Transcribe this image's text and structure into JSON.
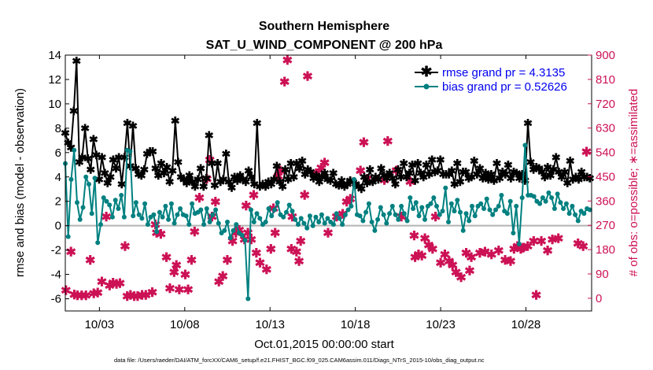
{
  "chart_data": {
    "type": "line",
    "title_line1": "Southern Hemisphere",
    "title_line2": "SAT_U_WIND_COMPONENT @ 200 hPa",
    "xlabel": "Oct.01,2015 00:00:00 start",
    "ylabel_left": "rmse and bias (model - observation)",
    "ylabel_right": "# of obs: o=possible; ∗=assimilated",
    "ylim_left": [
      -7,
      14
    ],
    "ylim_right": [
      -47,
      900
    ],
    "xlim": [
      1.0,
      31.85
    ],
    "x_ticks": [
      {
        "x": 3,
        "label": "10/03"
      },
      {
        "x": 8,
        "label": "10/08"
      },
      {
        "x": 13,
        "label": "10/13"
      },
      {
        "x": 18,
        "label": "10/18"
      },
      {
        "x": 23,
        "label": "10/23"
      },
      {
        "x": 28,
        "label": "10/28"
      }
    ],
    "y_ticks_left": [
      "-6",
      "-4",
      "-2",
      "0",
      "2",
      "4",
      "6",
      "8",
      "10",
      "12",
      "14"
    ],
    "y_ticks_right": [
      "0",
      "90",
      "180",
      "270",
      "360",
      "450",
      "540",
      "630",
      "720",
      "810",
      "900"
    ],
    "colors": {
      "rmse": "#000000",
      "bias": "#008080",
      "obs": "#cc1155",
      "zero_line": "#b3b3b3"
    },
    "legend": [
      "rmse grand pr = 4.3135",
      "bias grand pr = 0.52626"
    ],
    "footnote": "data file: /Users/raeder/DAI/ATM_forcXX/CAM6_setup/f.e21.FHIST_BGC.f09_025.CAM6assim.011/Diags_NTrS_2015-10/obs_diag_output.nc",
    "series": [
      {
        "name": "rmse",
        "values": [
          7.6,
          6.8,
          6.4,
          9.4,
          13.5,
          5.2,
          5.6,
          8.0,
          5.5,
          4.6,
          7.1,
          5.8,
          3.8,
          5.6,
          4.3,
          3.5,
          4.0,
          5.4,
          4.7,
          5.6,
          3.4,
          5.6,
          8.4,
          4.9,
          8.2,
          4.7,
          4.2,
          4.1,
          4.6,
          5.9,
          6.1,
          6.1,
          4.7,
          4.1,
          5.1,
          4.3,
          4.8,
          3.6,
          4.5,
          8.6,
          5.2,
          4.0,
          3.8,
          3.5,
          4.1,
          3.6,
          3.2,
          3.8,
          4.7,
          3.2,
          3.9,
          7.4,
          5.1,
          3.3,
          5.1,
          3.6,
          3.8,
          5.9,
          3.6,
          3.1,
          4.0,
          3.7,
          4.1,
          3.8,
          3.6,
          4.5,
          4.0,
          3.4,
          8.4,
          3.2,
          3.4,
          3.2,
          3.6,
          3.4,
          3.8,
          4.9,
          3.6,
          3.2,
          4.6,
          3.8,
          5.1,
          4.0,
          5.1,
          4.7,
          5.3,
          4.2,
          4.6,
          4.4,
          3.9,
          4.1,
          3.6,
          4.0,
          4.3,
          3.8,
          3.7,
          4.3,
          3.4,
          3.3,
          3.7,
          3.2,
          3.4,
          3.7,
          3.6,
          3.4,
          3.2,
          3.0,
          4.0,
          3.5,
          4.6,
          3.6,
          4.0,
          3.8,
          4.7,
          4.1,
          3.9,
          4.3,
          3.9,
          3.4,
          4.6,
          4.0,
          5.1,
          4.0,
          4.3,
          5.0,
          3.7,
          5.1,
          4.3,
          4.0,
          5.0,
          4.2,
          5.4,
          4.4,
          4.5,
          5.4,
          4.2,
          4.2,
          4.2,
          4.5,
          3.4,
          5.1,
          3.6,
          4.4,
          4.4,
          3.9,
          4.0,
          5.3,
          4.2,
          4.7,
          3.9,
          4.3,
          3.8,
          4.2,
          3.7,
          5.1,
          3.9,
          4.4,
          4.2,
          5.0,
          3.9,
          4.4,
          4.3,
          3.9,
          4.2,
          3.7,
          8.4,
          5.2,
          4.6,
          4.8,
          4.7,
          4.4,
          4.0,
          4.8,
          4.1,
          4.6,
          5.6,
          4.4,
          4.0,
          4.4,
          3.5,
          5.3,
          3.8,
          4.0,
          3.8,
          4.4,
          4.0,
          4.0,
          3.9
        ]
      },
      {
        "name": "bias",
        "values": [
          5.1,
          -0.9,
          3.8,
          6.2,
          1.9,
          0.5,
          1.5,
          4.0,
          3.4,
          1.0,
          3.9,
          -1.4,
          0.1,
          2.3,
          2.0,
          1.7,
          0.7,
          2.1,
          1.4,
          2.5,
          0.7,
          6.2,
          6.1,
          0.8,
          1.9,
          0.9,
          0.6,
          1.8,
          0.1,
          0.7,
          0.9,
          -0.5,
          1.1,
          0.7,
          1.6,
          0.5,
          1.8,
          0.2,
          0.9,
          1.4,
          0.9,
          0.8,
          0.1,
          1.8,
          1.0,
          1.1,
          1.3,
          0.1,
          1.4,
          0.3,
          0.9,
          1.3,
          0.2,
          -0.6,
          -0.4,
          0.3,
          -1.0,
          -0.4,
          0.1,
          -0.6,
          -0.8,
          -1.2,
          -6.0,
          1.3,
          0.3,
          1.0,
          0.6,
          0.1,
          0.3,
          1.4,
          0.8,
          1.3,
          1.9,
          0.9,
          0.7,
          1.1,
          1.7,
          1.2,
          0.5,
          0.1,
          0.6,
          0.2,
          -0.2,
          0.8,
          0.0,
          0.7,
          0.3,
          0.9,
          0.2,
          0.6,
          0.3,
          0.1,
          1.0,
          0.6,
          0.1,
          0.9,
          1.3,
          1.6,
          3.8,
          0.9,
          0.8,
          0.4,
          1.1,
          1.8,
          0.3,
          -0.4,
          0.5,
          1.5,
          0.9,
          0.2,
          1.0,
          1.6,
          0.9,
          0.5,
          1.6,
          1.0,
          0.4,
          2.3,
          1.4,
          1.9,
          0.8,
          1.5,
          0.5,
          1.6,
          1.8,
          2.3,
          1.6,
          0.9,
          1.2,
          3.1,
          0.3,
          1.8,
          1.2,
          2.1,
          1.1,
          -0.4,
          1.0,
          0.4,
          1.6,
          0.8,
          1.6,
          1.8,
          1.4,
          2.2,
          1.3,
          0.9,
          1.3,
          1.6,
          2.5,
          1.2,
          1.0,
          2.0,
          -0.6,
          1.6,
          -1.5,
          2.3,
          6.6,
          2.5,
          2.5,
          2.4,
          2.0,
          1.8,
          2.3,
          2.0,
          2.7,
          2.3,
          1.4,
          2.6,
          1.9,
          1.4,
          1.8,
          1.0,
          1.6,
          0.9,
          0.4,
          1.2,
          1.0,
          1.4,
          1.3
        ]
      },
      {
        "name": "assimilated_obs_count",
        "points": [
          [
            1.04,
            28
          ],
          [
            1.33,
            170
          ],
          [
            1.53,
            12
          ],
          [
            1.71,
            8
          ],
          [
            1.96,
            8
          ],
          [
            2.21,
            8
          ],
          [
            2.46,
            140
          ],
          [
            2.67,
            15
          ],
          [
            2.9,
            18
          ],
          [
            3.14,
            60
          ],
          [
            3.4,
            300
          ],
          [
            3.6,
            45
          ],
          [
            3.8,
            55
          ],
          [
            4.0,
            50
          ],
          [
            4.2,
            53
          ],
          [
            4.5,
            190
          ],
          [
            4.63,
            5
          ],
          [
            4.82,
            10
          ],
          [
            5.04,
            5
          ],
          [
            5.24,
            5
          ],
          [
            5.5,
            10
          ],
          [
            5.72,
            10
          ],
          [
            6.1,
            20
          ],
          [
            6.28,
            270
          ],
          [
            6.35,
            240
          ],
          [
            6.6,
            235
          ],
          [
            6.93,
            150
          ],
          [
            7.13,
            35
          ],
          [
            7.38,
            95
          ],
          [
            7.51,
            120
          ],
          [
            7.68,
            30
          ],
          [
            8.03,
            85
          ],
          [
            8.2,
            30
          ],
          [
            8.4,
            140
          ],
          [
            8.58,
            245
          ],
          [
            8.86,
            370
          ],
          [
            9.3,
            440
          ],
          [
            9.47,
            510
          ],
          [
            9.6,
            300
          ],
          [
            9.8,
            355
          ],
          [
            10.0,
            60
          ],
          [
            10.23,
            80
          ],
          [
            10.5,
            140
          ],
          [
            10.8,
            210
          ],
          [
            11.0,
            240
          ],
          [
            11.2,
            250
          ],
          [
            11.5,
            215
          ],
          [
            11.6,
            340
          ],
          [
            11.7,
            240
          ],
          [
            11.9,
            215
          ],
          [
            12.04,
            380
          ],
          [
            12.2,
            165
          ],
          [
            12.41,
            130
          ],
          [
            12.8,
            105
          ],
          [
            13.05,
            180
          ],
          [
            13.2,
            330
          ],
          [
            13.3,
            240
          ],
          [
            13.47,
            450
          ],
          [
            13.6,
            470
          ],
          [
            13.85,
            800
          ],
          [
            14.02,
            880
          ],
          [
            14.25,
            180
          ],
          [
            14.3,
            300
          ],
          [
            14.55,
            170
          ],
          [
            14.7,
            135
          ],
          [
            14.8,
            210
          ],
          [
            15.03,
            380
          ],
          [
            15.2,
            820
          ],
          [
            15.7,
            460
          ],
          [
            16.0,
            480
          ],
          [
            16.2,
            500
          ],
          [
            16.4,
            240
          ],
          [
            16.9,
            300
          ],
          [
            17.26,
            310
          ],
          [
            17.49,
            355
          ],
          [
            17.7,
            365
          ],
          [
            18.3,
            470
          ],
          [
            18.5,
            575
          ],
          [
            18.7,
            440
          ],
          [
            19.7,
            435
          ],
          [
            19.9,
            580
          ],
          [
            20.4,
            470
          ],
          [
            20.7,
            300
          ],
          [
            21.22,
            430
          ],
          [
            21.45,
            230
          ],
          [
            21.5,
            150
          ],
          [
            21.7,
            160
          ],
          [
            21.9,
            155
          ],
          [
            22.08,
            220
          ],
          [
            22.3,
            195
          ],
          [
            22.53,
            180
          ],
          [
            22.7,
            300
          ],
          [
            23.0,
            130
          ],
          [
            23.25,
            160
          ],
          [
            23.5,
            135
          ],
          [
            23.7,
            120
          ],
          [
            23.9,
            95
          ],
          [
            24.2,
            75
          ],
          [
            24.5,
            165
          ],
          [
            24.7,
            100
          ],
          [
            24.8,
            150
          ],
          [
            25.3,
            165
          ],
          [
            25.6,
            170
          ],
          [
            25.98,
            160
          ],
          [
            26.4,
            175
          ],
          [
            26.78,
            140
          ],
          [
            27.1,
            135
          ],
          [
            27.3,
            180
          ],
          [
            27.5,
            190
          ],
          [
            27.7,
            180
          ],
          [
            27.83,
            185
          ],
          [
            28.1,
            190
          ],
          [
            28.45,
            210
          ],
          [
            28.6,
            10
          ],
          [
            28.9,
            210
          ],
          [
            29.27,
            175
          ],
          [
            29.55,
            215
          ],
          [
            29.9,
            220
          ],
          [
            31.05,
            200
          ],
          [
            31.35,
            190
          ],
          [
            31.55,
            540
          ]
        ]
      }
    ]
  }
}
